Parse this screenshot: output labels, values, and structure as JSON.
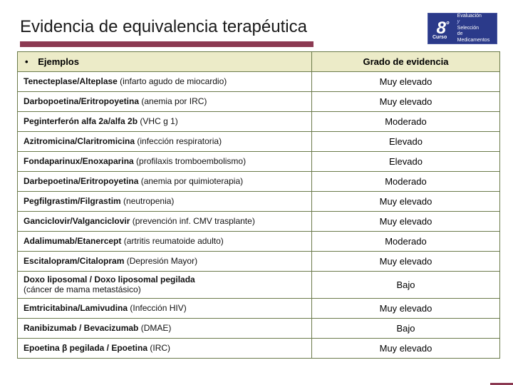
{
  "title": "Evidencia de equivalencia terapéutica",
  "badge": {
    "num": "8",
    "ord": "º",
    "line1": "Evaluación",
    "line2": "y",
    "line3": "Selección",
    "line4": "de Medicamentos",
    "bg": "#2b3a8a"
  },
  "colors": {
    "underline": "#8c3a52",
    "header_bg": "#ecebc8",
    "border": "#6b7a4a"
  },
  "table": {
    "head_left_bullet": "•",
    "head_left": "Ejemplos",
    "head_right": "Grado de evidencia",
    "rows": [
      {
        "drug": "Tenecteplase/Alteplase",
        "context": " (infarto agudo de miocardio)",
        "grade": "Muy elevado"
      },
      {
        "drug": "Darbopoetina/Eritropoyetina",
        "context": " (anemia por IRC)",
        "grade": "Muy elevado"
      },
      {
        "drug": "Peginterferón alfa 2a/alfa 2b",
        "context": " (VHC g 1)",
        "grade": "Moderado"
      },
      {
        "drug": "Azitromicina/Claritromicina",
        "context": " (infección respiratoria)",
        "grade": "Elevado"
      },
      {
        "drug": "Fondaparinux/Enoxaparina",
        "context": " (profilaxis tromboembolismo)",
        "grade": "Elevado"
      },
      {
        "drug": "Darbepoetina/Eritropoyetina",
        "context": " (anemia por quimioterapia)",
        "grade": "Moderado"
      },
      {
        "drug": "Pegfilgrastim/Filgrastim",
        "context": " (neutropenia)",
        "grade": "Muy elevado"
      },
      {
        "drug": "Ganciclovir/Valganciclovir",
        "context": " (prevención inf. CMV trasplante)",
        "grade": "Muy elevado"
      },
      {
        "drug": "Adalimumab/Etanercept",
        "context": " (artritis reumatoide adulto)",
        "grade": "Moderado"
      },
      {
        "drug": "Escitalopram/Citalopram",
        "context": " (Depresión Mayor)",
        "grade": "Muy elevado"
      },
      {
        "drug": "Doxo liposomal / Doxo liposomal pegilada",
        "context": "\n(cáncer de mama metastásico)",
        "grade": "Bajo",
        "multiline": true
      },
      {
        "drug": "Emtricitabina/Lamivudina",
        "context": " (Infección HIV)",
        "grade": "Muy elevado"
      },
      {
        "drug": "Ranibizumab / Bevacizumab",
        "context": " (DMAE)",
        "grade": "Bajo"
      },
      {
        "drug": "Epoetina β pegilada / Epoetina",
        "context": " (IRC)",
        "grade": "Muy elevado"
      }
    ]
  }
}
